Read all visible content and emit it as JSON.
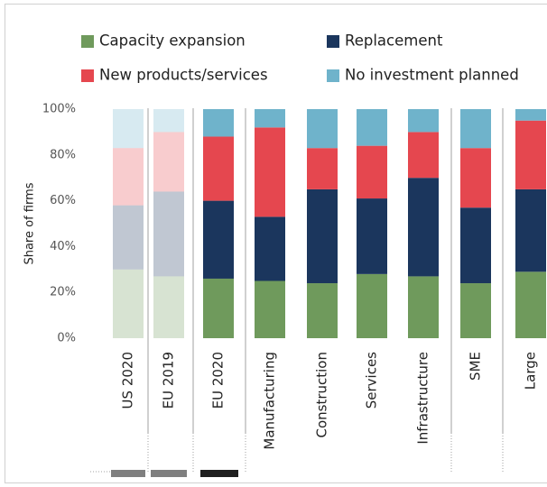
{
  "chart_data": {
    "type": "stacked_bar",
    "ylabel": "Share of firms",
    "categories": [
      "US 2020",
      "EU 2019",
      "EU 2020",
      "Manufacturing",
      "Construction",
      "Services",
      "Infrastructure",
      "SME",
      "Large"
    ],
    "faded": [
      true,
      true,
      false,
      false,
      false,
      false,
      false,
      false,
      false
    ],
    "series": [
      {
        "name": "Capacity expansion",
        "color": "#6f9a5c",
        "values": [
          30,
          27,
          26,
          25,
          24,
          28,
          27,
          24,
          29
        ]
      },
      {
        "name": "Replacement",
        "color": "#1b365d",
        "values": [
          28,
          37,
          34,
          28,
          41,
          33,
          43,
          33,
          36
        ]
      },
      {
        "name": "New products/services",
        "color": "#e5474f",
        "values": [
          25,
          26,
          28,
          39,
          18,
          23,
          20,
          26,
          30
        ]
      },
      {
        "name": "No investment planned",
        "color": "#6fb3cb",
        "values": [
          17,
          10,
          12,
          8,
          17,
          16,
          10,
          17,
          5
        ]
      }
    ],
    "ylim": [
      0,
      100
    ],
    "yticks": [
      {
        "value": 0,
        "label": "0%"
      },
      {
        "value": 20,
        "label": "20%"
      },
      {
        "value": 40,
        "label": "40%"
      },
      {
        "value": 60,
        "label": "60%"
      },
      {
        "value": 80,
        "label": "80%"
      },
      {
        "value": 100,
        "label": "100%"
      }
    ]
  }
}
